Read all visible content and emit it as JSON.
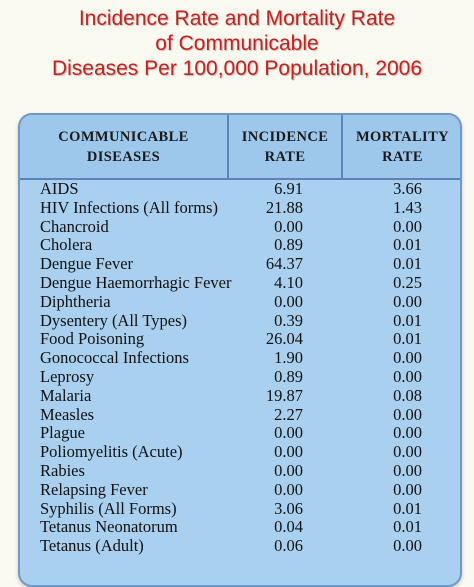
{
  "title": {
    "line1": "Incidence Rate and Mortality Rate",
    "line2": "of Communicable",
    "line3": "Diseases Per 100,000 Population, 2006"
  },
  "table": {
    "headers": {
      "disease_line1": "COMMUNICABLE",
      "disease_line2": "DISEASES",
      "incidence_line1": "INCIDENCE",
      "incidence_line2": "RATE",
      "mortality_line1": "MORTALITY",
      "mortality_line2": "RATE"
    },
    "rows": [
      {
        "disease": "AIDS",
        "incidence": "6.91",
        "mortality": "3.66"
      },
      {
        "disease": "HIV Infections (All forms)",
        "incidence": "21.88",
        "mortality": "1.43"
      },
      {
        "disease": "Chancroid",
        "incidence": "0.00",
        "mortality": "0.00"
      },
      {
        "disease": "Cholera",
        "incidence": "0.89",
        "mortality": "0.01"
      },
      {
        "disease": "Dengue Fever",
        "incidence": "64.37",
        "mortality": "0.01"
      },
      {
        "disease": "Dengue Haemorrhagic Fever",
        "incidence": "4.10",
        "mortality": "0.25"
      },
      {
        "disease": "Diphtheria",
        "incidence": "0.00",
        "mortality": "0.00"
      },
      {
        "disease": "Dysentery (All Types)",
        "incidence": "0.39",
        "mortality": "0.01"
      },
      {
        "disease": "Food Poisoning",
        "incidence": "26.04",
        "mortality": "0.01"
      },
      {
        "disease": "Gonococcal Infections",
        "incidence": "1.90",
        "mortality": "0.00"
      },
      {
        "disease": "Leprosy",
        "incidence": "0.89",
        "mortality": "0.00"
      },
      {
        "disease": "Malaria",
        "incidence": "19.87",
        "mortality": "0.08"
      },
      {
        "disease": "Measles",
        "incidence": "2.27",
        "mortality": "0.00"
      },
      {
        "disease": "Plague",
        "incidence": "0.00",
        "mortality": "0.00"
      },
      {
        "disease": "Poliomyelitis (Acute)",
        "incidence": "0.00",
        "mortality": "0.00"
      },
      {
        "disease": "Rabies",
        "incidence": "0.00",
        "mortality": "0.00"
      },
      {
        "disease": "Relapsing Fever",
        "incidence": "0.00",
        "mortality": "0.00"
      },
      {
        "disease": "Syphilis (All Forms)",
        "incidence": "3.06",
        "mortality": "0.01"
      },
      {
        "disease": "Tetanus Neonatorum",
        "incidence": "0.04",
        "mortality": "0.01"
      },
      {
        "disease": "Tetanus (Adult)",
        "incidence": "0.06",
        "mortality": "0.00"
      }
    ]
  }
}
